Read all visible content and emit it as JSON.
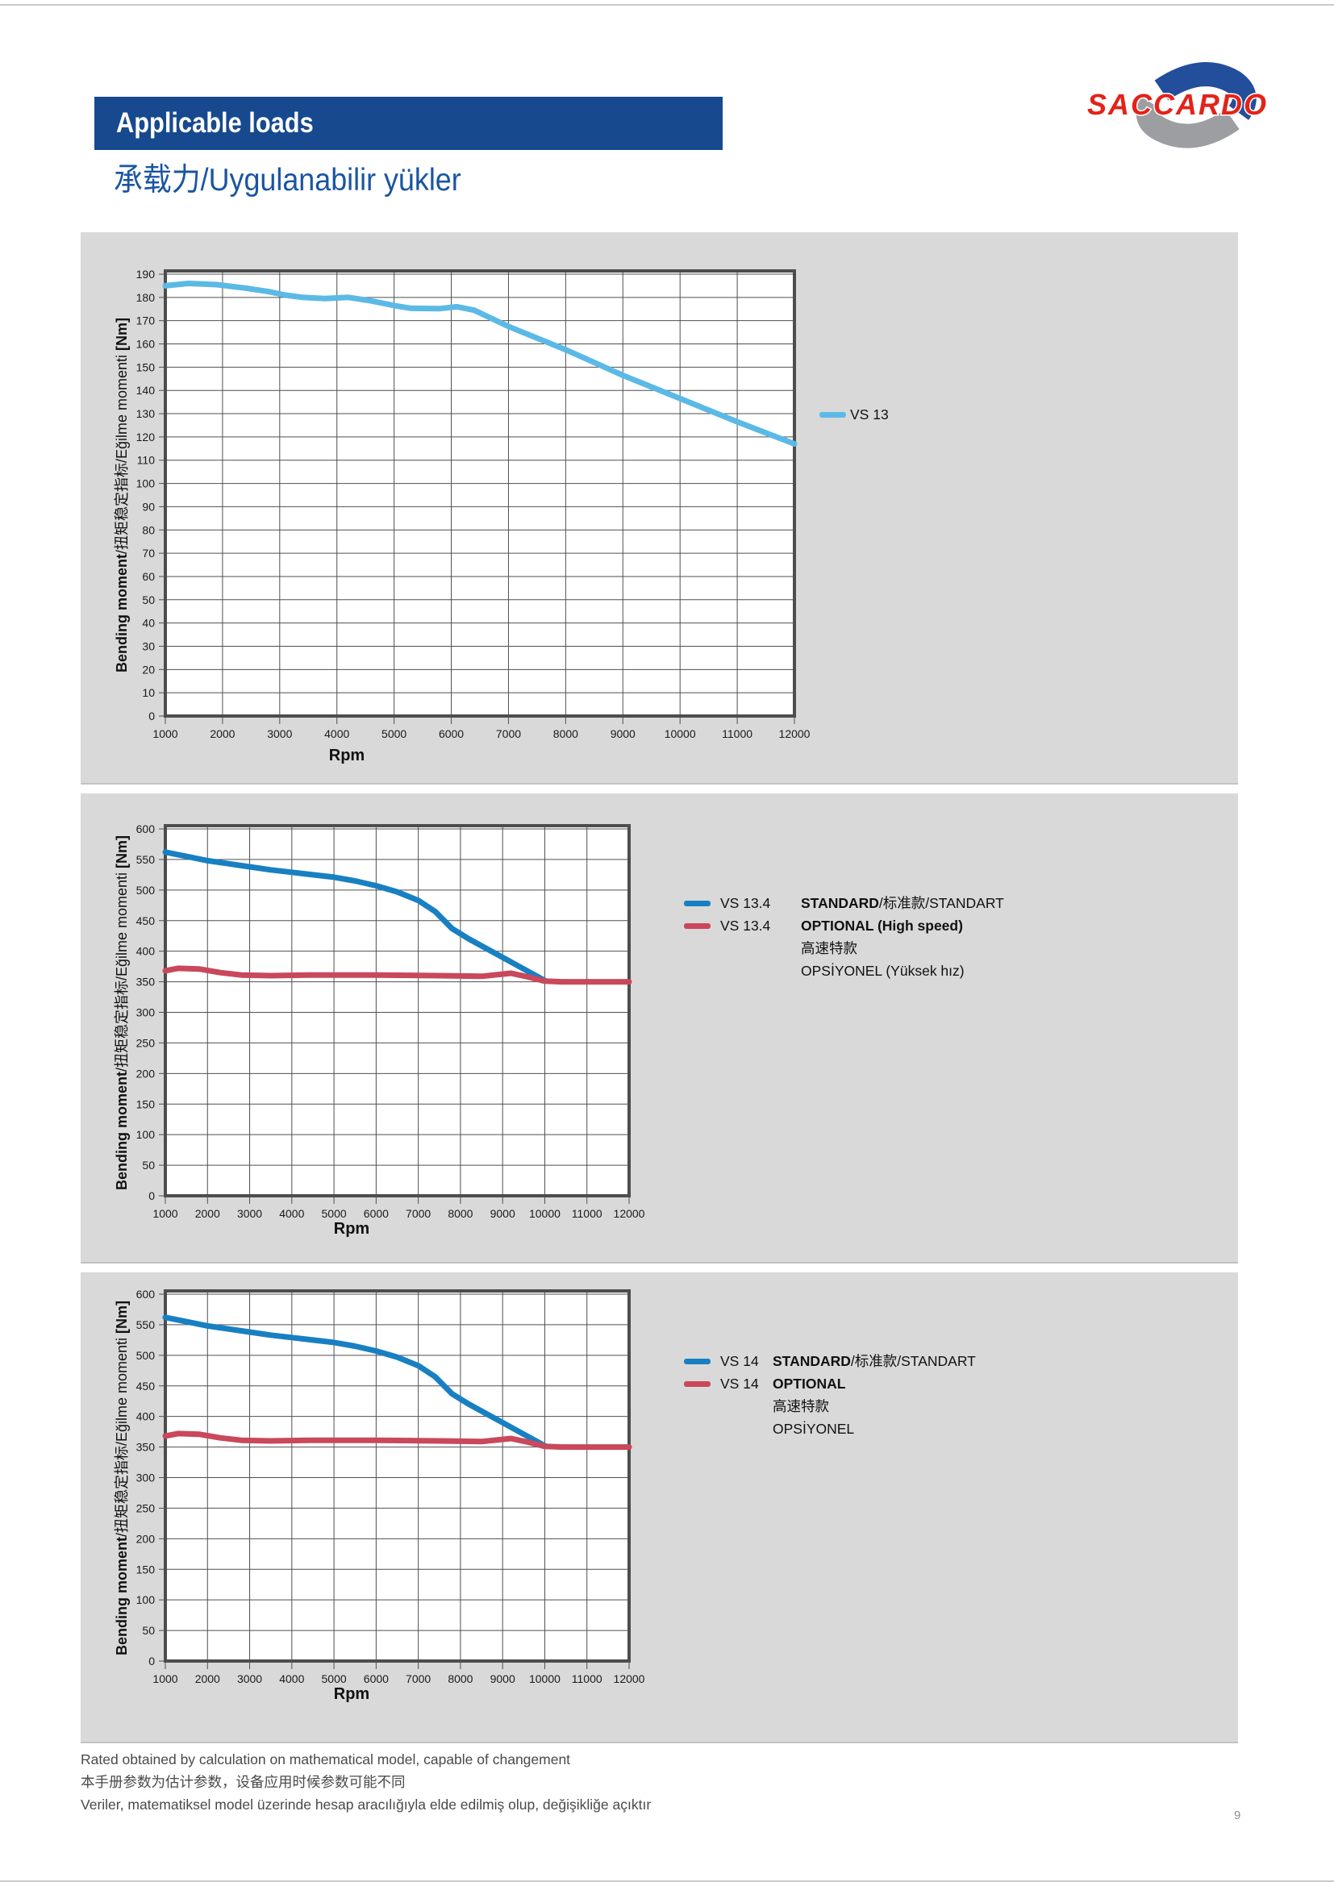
{
  "page": {
    "number": "9"
  },
  "header": {
    "title": "Applicable loads",
    "subtitle": "承载力/Uygulanabilir yükler",
    "bar_color": "#17498F",
    "logo_text": "SACCARDO"
  },
  "axis": {
    "y_label_bold1": "Bending moment",
    "y_label_mid": "/扭矩稳定指标/Eğilme momenti ",
    "y_label_bold2": "[Nm]",
    "x_label": "Rpm"
  },
  "footer": {
    "line1": "Rated obtained by calculation on mathematical model, capable of changement",
    "line2": "本手册参数为估计参数，设备应用时候参数可能不同",
    "line3": "Veriler, matematiksel model üzerinde hesap aracılığıyla elde edilmiş olup, değişikliğe açıktır"
  },
  "chart_data": [
    {
      "type": "line",
      "xlabel": "Rpm",
      "ylabel": "Bending moment/扭矩稳定指标/Eğilme momenti [Nm]",
      "xlim": [
        1000,
        12000
      ],
      "xstep": 1000,
      "ylim": [
        0,
        190
      ],
      "ystep": 10,
      "grid": true,
      "legend_position": "right",
      "series": [
        {
          "name": "VS 13",
          "color": "#5BB9E6",
          "points": [
            [
              1000,
              185
            ],
            [
              1400,
              186
            ],
            [
              1900,
              185.5
            ],
            [
              2400,
              184
            ],
            [
              2800,
              182.5
            ],
            [
              3100,
              181
            ],
            [
              3400,
              180
            ],
            [
              3800,
              179.5
            ],
            [
              4200,
              180
            ],
            [
              4600,
              178.5
            ],
            [
              5000,
              176.5
            ],
            [
              5300,
              175.3
            ],
            [
              5800,
              175.2
            ],
            [
              6100,
              176
            ],
            [
              6400,
              174.5
            ],
            [
              7000,
              167.5
            ],
            [
              8000,
              157.5
            ],
            [
              9000,
              146.5
            ],
            [
              10000,
              136.5
            ],
            [
              11000,
              126.5
            ],
            [
              12000,
              117
            ]
          ]
        }
      ],
      "legend": {
        "rows": [
          {
            "model": "VS 13",
            "bold": "",
            "rest": ""
          }
        ]
      }
    },
    {
      "type": "line",
      "xlabel": "Rpm",
      "ylabel": "Bending moment/扭矩稳定指标/Eğilme momenti [Nm]",
      "xlim": [
        1000,
        12000
      ],
      "xstep": 1000,
      "ylim": [
        0,
        600
      ],
      "ystep": 50,
      "grid": true,
      "legend_position": "right",
      "series": [
        {
          "name": "VS 13.4 STANDARD",
          "color": "#1880C2",
          "points": [
            [
              1000,
              562
            ],
            [
              1500,
              555
            ],
            [
              2000,
              548
            ],
            [
              2500,
              543
            ],
            [
              3000,
              538
            ],
            [
              3500,
              533
            ],
            [
              4000,
              529
            ],
            [
              4500,
              525
            ],
            [
              5000,
              521
            ],
            [
              5500,
              515
            ],
            [
              6000,
              507
            ],
            [
              6500,
              497
            ],
            [
              7000,
              483
            ],
            [
              7400,
              465
            ],
            [
              7800,
              437
            ],
            [
              8200,
              420
            ],
            [
              9000,
              390
            ],
            [
              9500,
              371
            ],
            [
              10000,
              352
            ]
          ]
        },
        {
          "name": "VS 13.4 OPTIONAL (High speed)",
          "color": "#C9485B",
          "points": [
            [
              1000,
              368
            ],
            [
              1300,
              372
            ],
            [
              1800,
              371
            ],
            [
              2300,
              365
            ],
            [
              2800,
              361
            ],
            [
              3500,
              360
            ],
            [
              4500,
              361
            ],
            [
              6000,
              361
            ],
            [
              7500,
              360
            ],
            [
              8500,
              359
            ],
            [
              9200,
              364
            ],
            [
              9600,
              358
            ],
            [
              10000,
              351
            ],
            [
              10400,
              350
            ],
            [
              12000,
              350
            ]
          ]
        }
      ],
      "legend": {
        "rows": [
          {
            "model": "VS 13.4",
            "bold": "STANDARD",
            "rest": "/标准款/STANDART"
          },
          {
            "model": "VS 13.4",
            "bold": "OPTIONAL (High speed)",
            "line2": "高速特款",
            "line3": "OPSİYONEL (Yüksek hız)"
          }
        ]
      }
    },
    {
      "type": "line",
      "xlabel": "Rpm",
      "ylabel": "Bending moment/扭矩稳定指标/Eğilme momenti [Nm]",
      "xlim": [
        1000,
        12000
      ],
      "xstep": 1000,
      "ylim": [
        0,
        600
      ],
      "ystep": 50,
      "grid": true,
      "legend_position": "right",
      "series": [
        {
          "name": "VS 14 STANDARD",
          "color": "#1880C2",
          "points": [
            [
              1000,
              562
            ],
            [
              1500,
              555
            ],
            [
              2000,
              548
            ],
            [
              2500,
              543
            ],
            [
              3000,
              538
            ],
            [
              3500,
              533
            ],
            [
              4000,
              529
            ],
            [
              4500,
              525
            ],
            [
              5000,
              521
            ],
            [
              5500,
              515
            ],
            [
              6000,
              507
            ],
            [
              6500,
              497
            ],
            [
              7000,
              483
            ],
            [
              7400,
              465
            ],
            [
              7800,
              437
            ],
            [
              8200,
              420
            ],
            [
              9000,
              390
            ],
            [
              9500,
              371
            ],
            [
              10000,
              352
            ]
          ]
        },
        {
          "name": "VS 14 OPTIONAL",
          "color": "#C9485B",
          "points": [
            [
              1000,
              368
            ],
            [
              1300,
              372
            ],
            [
              1800,
              371
            ],
            [
              2300,
              365
            ],
            [
              2800,
              361
            ],
            [
              3500,
              360
            ],
            [
              4500,
              361
            ],
            [
              6000,
              361
            ],
            [
              7500,
              360
            ],
            [
              8500,
              359
            ],
            [
              9200,
              364
            ],
            [
              9600,
              358
            ],
            [
              10000,
              351
            ],
            [
              10400,
              350
            ],
            [
              12000,
              350
            ]
          ]
        }
      ],
      "legend": {
        "rows": [
          {
            "model": "VS 14",
            "bold": "STANDARD",
            "rest": "/标准款/STANDART"
          },
          {
            "model": "VS 14",
            "bold": "OPTIONAL",
            "line2": "高速特款",
            "line3": "OPSİYONEL"
          }
        ]
      }
    }
  ]
}
